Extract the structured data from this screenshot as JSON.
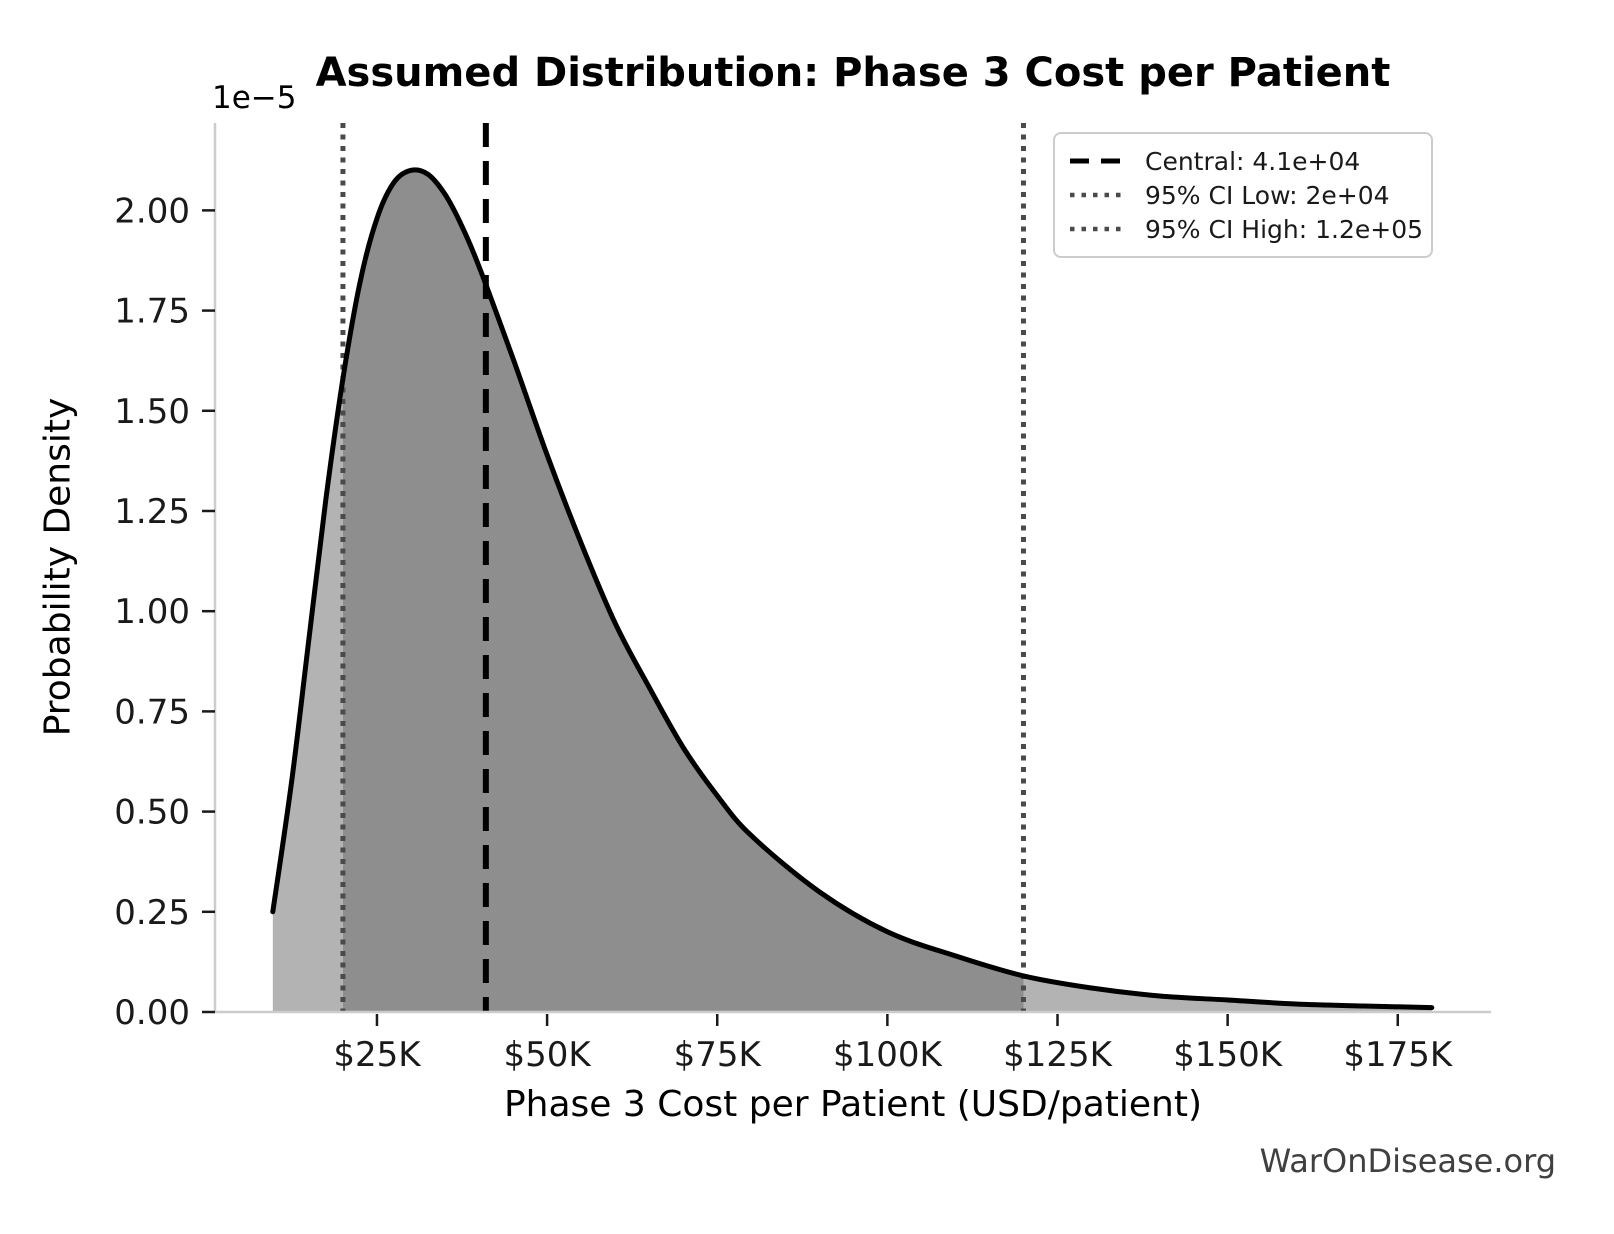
{
  "watermark": "WarOnDisease.org",
  "chart_data": {
    "type": "area",
    "title": "Assumed Distribution: Phase 3 Cost per Patient",
    "xlabel": "Phase 3 Cost per Patient (USD/patient)",
    "ylabel": "Probability Density",
    "y_offset_label": "1e−5",
    "grid": false,
    "xlim_usd": [
      1200,
      188700
    ],
    "ylim_density_1e5": [
      0,
      2.218
    ],
    "x_ticks": [
      {
        "value": 25000,
        "label": "$25K"
      },
      {
        "value": 50000,
        "label": "$50K"
      },
      {
        "value": 75000,
        "label": "$75K"
      },
      {
        "value": 100000,
        "label": "$100K"
      },
      {
        "value": 125000,
        "label": "$125K"
      },
      {
        "value": 150000,
        "label": "$150K"
      },
      {
        "value": 175000,
        "label": "$175K"
      }
    ],
    "y_ticks": [
      {
        "value": 0.0,
        "label": "0.00"
      },
      {
        "value": 0.25,
        "label": "0.25"
      },
      {
        "value": 0.5,
        "label": "0.50"
      },
      {
        "value": 0.75,
        "label": "0.75"
      },
      {
        "value": 1.0,
        "label": "1.00"
      },
      {
        "value": 1.25,
        "label": "1.25"
      },
      {
        "value": 1.5,
        "label": "1.50"
      },
      {
        "value": 1.75,
        "label": "1.75"
      },
      {
        "value": 2.0,
        "label": "2.00"
      }
    ],
    "curve": {
      "x_usd": [
        9700,
        12500,
        15000,
        17500,
        20000,
        22500,
        25000,
        27500,
        30000,
        32500,
        35000,
        37500,
        40000,
        45000,
        50000,
        55000,
        60000,
        65000,
        70000,
        75000,
        80000,
        90000,
        100000,
        110000,
        120000,
        130000,
        140000,
        150000,
        160000,
        170000,
        180000
      ],
      "density_1e5": [
        0.25,
        0.58,
        0.93,
        1.28,
        1.58,
        1.82,
        1.98,
        2.07,
        2.1,
        2.09,
        2.04,
        1.96,
        1.86,
        1.63,
        1.39,
        1.17,
        0.97,
        0.81,
        0.66,
        0.54,
        0.44,
        0.3,
        0.2,
        0.14,
        0.09,
        0.06,
        0.04,
        0.03,
        0.02,
        0.015,
        0.011
      ]
    },
    "vlines": {
      "central": {
        "value": 41000,
        "label": "Central: 4.1e+04",
        "style": "dashed",
        "color": "#000000"
      },
      "ci_low": {
        "value": 20000,
        "label": "95% CI Low: 2e+04",
        "style": "dotted",
        "color": "#4a4a4a"
      },
      "ci_high": {
        "value": 120000,
        "label": "95% CI High: 1.2e+05",
        "style": "dotted",
        "color": "#4a4a4a"
      }
    },
    "colors": {
      "curve": "#000000",
      "fill_tails": "#b3b3b3",
      "fill_ci": "#8e8e8e",
      "spine": "#cccccc",
      "tick": "#1a1a1a",
      "legend_border": "#cccccc"
    },
    "legend_position": "upper right"
  }
}
